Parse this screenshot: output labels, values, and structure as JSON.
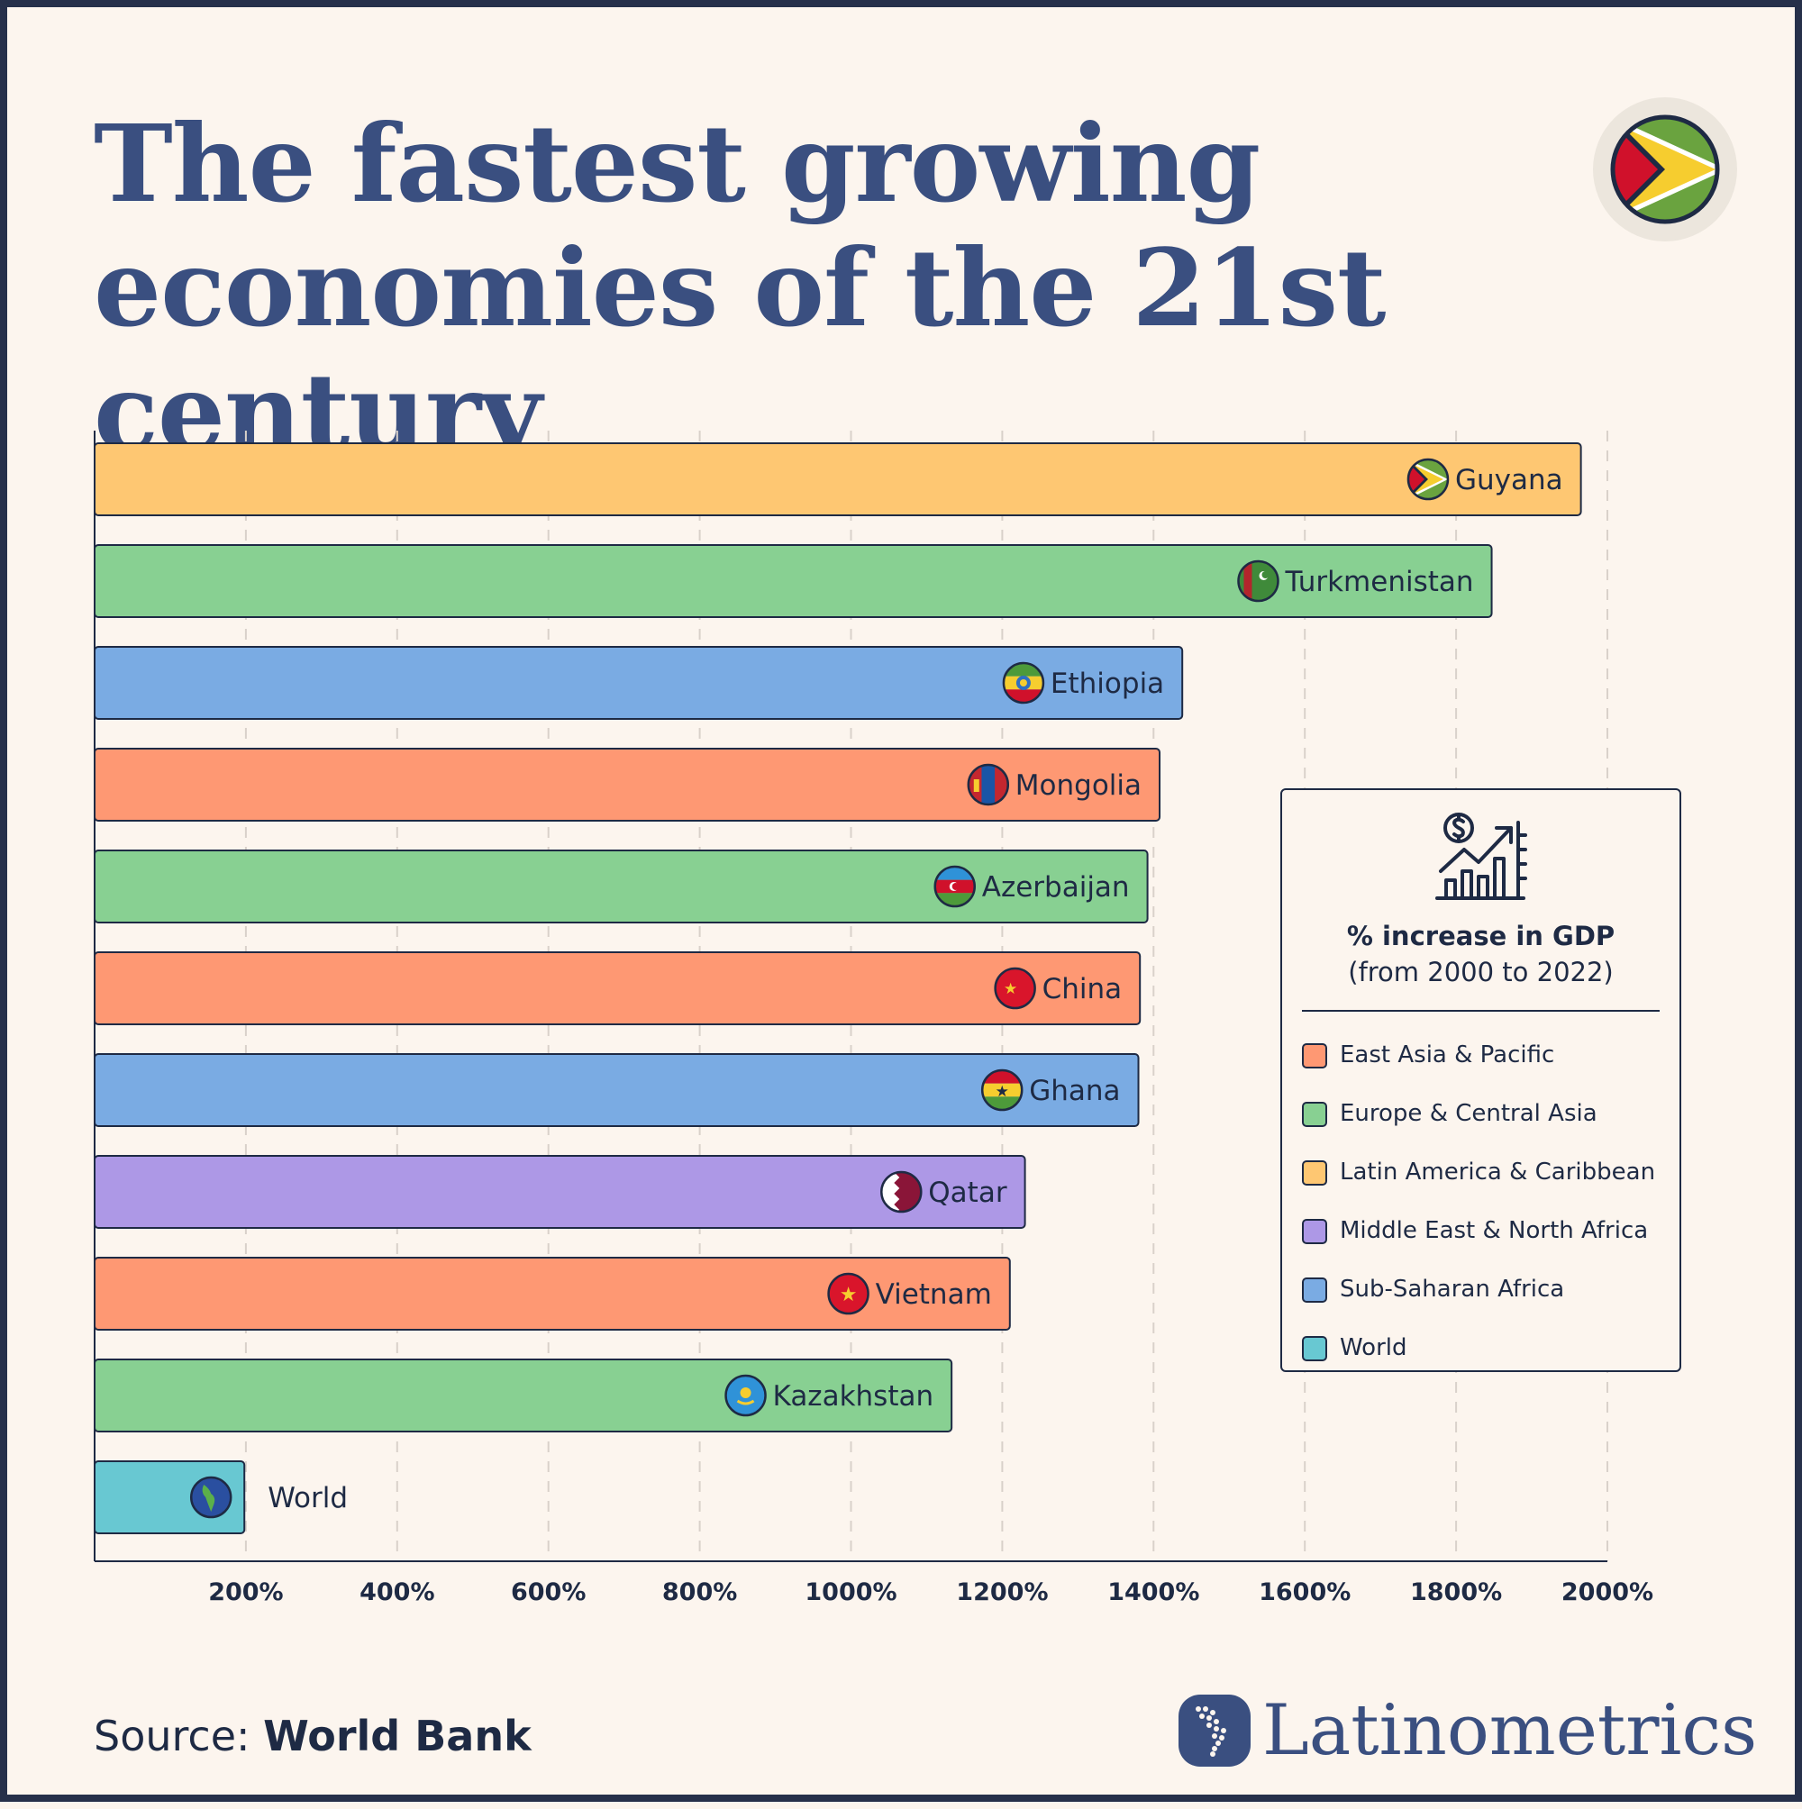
{
  "title": {
    "line1": "The fastest growing",
    "line2": "economies of the 21st century"
  },
  "header_flag": "guyana-flag-icon",
  "colors": {
    "background": "#fcf5ee",
    "ink": "#1e2a44",
    "title": "#3a4f80",
    "gridline": "#d9d1ca",
    "East Asia & Pacific": "#fe9873",
    "Europe & Central Asia": "#88d092",
    "Latin America & Caribbean": "#fec772",
    "Middle East & North Africa": "#ad98e6",
    "Sub-Saharan Africa": "#7aabe3",
    "World": "#68c8d2"
  },
  "chart_data": {
    "type": "bar",
    "orientation": "horizontal",
    "title": "% increase in GDP",
    "subtitle": "(from 2000 to 2022)",
    "xlabel": "",
    "ylabel": "",
    "xlim": [
      0,
      2000
    ],
    "x_ticks": [
      200,
      400,
      600,
      800,
      1000,
      1200,
      1400,
      1600,
      1800,
      2000
    ],
    "x_tick_labels": [
      "200%",
      "400%",
      "600%",
      "800%",
      "1000%",
      "1200%",
      "1400%",
      "1600%",
      "1800%",
      "2000%"
    ],
    "grid": true,
    "legend_position": "right",
    "categories": [
      "Guyana",
      "Turkmenistan",
      "Ethiopia",
      "Mongolia",
      "Azerbaijan",
      "China",
      "Ghana",
      "Qatar",
      "Vietnam",
      "Kazakhstan",
      "World"
    ],
    "values": [
      1965,
      1847,
      1438,
      1408,
      1392,
      1382,
      1380,
      1230,
      1210,
      1133,
      198
    ],
    "regions": [
      "Latin America & Caribbean",
      "Europe & Central Asia",
      "Sub-Saharan Africa",
      "East Asia & Pacific",
      "Europe & Central Asia",
      "East Asia & Pacific",
      "Sub-Saharan Africa",
      "Middle East & North Africa",
      "East Asia & Pacific",
      "Europe & Central Asia",
      "World"
    ],
    "flag_icons": [
      "guyana-flag-icon",
      "turkmenistan-flag-icon",
      "ethiopia-flag-icon",
      "mongolia-flag-icon",
      "azerbaijan-flag-icon",
      "china-flag-icon",
      "ghana-flag-icon",
      "qatar-flag-icon",
      "vietnam-flag-icon",
      "kazakhstan-flag-icon",
      "globe-icon"
    ]
  },
  "legend": {
    "icon": "growth-chart-icon",
    "title": "% increase in GDP",
    "subtitle": "(from 2000 to 2022)",
    "items": [
      "East Asia & Pacific",
      "Europe & Central Asia",
      "Latin America & Caribbean",
      "Middle East & North Africa",
      "Sub-Saharan Africa",
      "World"
    ]
  },
  "source": {
    "prefix": "Source: ",
    "name": "World Bank"
  },
  "brand": {
    "name": "Latinometrics",
    "logo": "latinometrics-logo-icon"
  }
}
